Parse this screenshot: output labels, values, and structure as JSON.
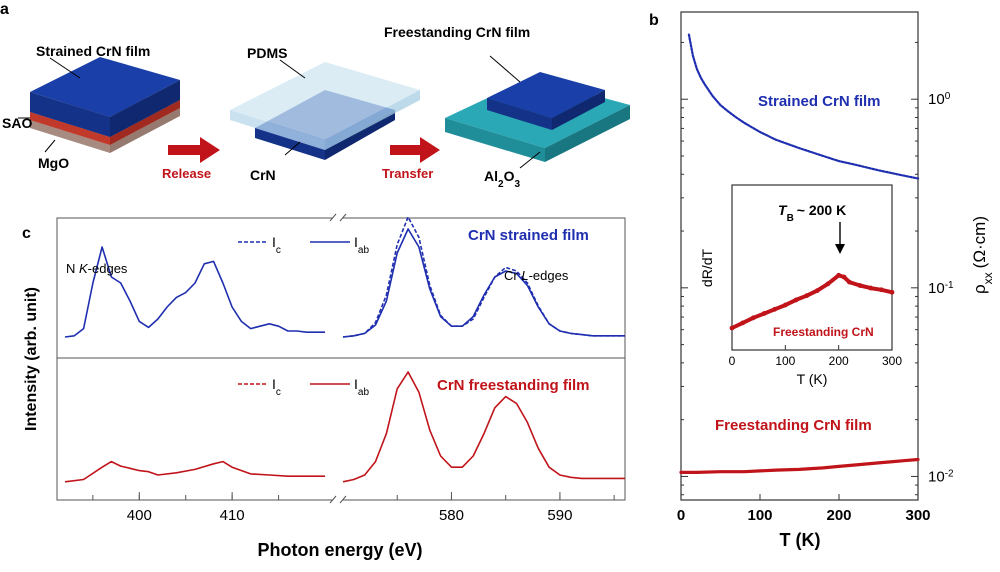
{
  "panel_a": {
    "letter": "a",
    "label_strained": "Strained CrN film",
    "label_sao": "SAO",
    "label_mgo": "MgO",
    "label_pdms": "PDMS",
    "label_crn": "CrN",
    "label_freestanding": "Freestanding CrN film",
    "label_al2o3_main": "Al",
    "label_al2o3_sub1": "2",
    "label_al2o3_o": "O",
    "label_al2o3_sub2": "3",
    "arrow_release": "Release",
    "arrow_transfer": "Transfer",
    "colors": {
      "crn": "#1a3fa8",
      "sao": "#c0392b",
      "mgo": "#b89a8f",
      "pdms": "#cfe6f2",
      "al2o3": "#2aa8b5",
      "arrow": "#c0141a"
    }
  },
  "chart_data": [
    {
      "panel": "b",
      "type": "line",
      "xlabel": "T (K)",
      "ylabel": "ρ",
      "ylabel_sub": "xx",
      "ylabel_unit": "(Ω·cm)",
      "xlim": [
        0,
        300
      ],
      "ylim": [
        0.0075,
        2.9
      ],
      "yscale": "log",
      "xticks": [
        0,
        100,
        200,
        300
      ],
      "yticks": [
        {
          "value": 1,
          "mantissa": "10",
          "exp": "0"
        },
        {
          "value": 0.1,
          "mantissa": "10",
          "exp": "-1"
        },
        {
          "value": 0.01,
          "mantissa": "10",
          "exp": "-2"
        }
      ],
      "series": [
        {
          "name": "Strained CrN film",
          "color": "#1f2fb0",
          "x": [
            10,
            15,
            20,
            25,
            30,
            40,
            50,
            60,
            70,
            80,
            100,
            120,
            150,
            180,
            200,
            220,
            250,
            280,
            300
          ],
          "y": [
            2.2,
            1.7,
            1.45,
            1.3,
            1.2,
            1.04,
            0.93,
            0.86,
            0.8,
            0.75,
            0.67,
            0.61,
            0.55,
            0.5,
            0.47,
            0.45,
            0.42,
            0.395,
            0.38
          ]
        },
        {
          "name": "Freestanding CrN film",
          "color": "#c0141a",
          "x": [
            0,
            20,
            50,
            80,
            100,
            120,
            150,
            180,
            200,
            220,
            250,
            280,
            300
          ],
          "y": [
            0.0105,
            0.0105,
            0.0106,
            0.0106,
            0.0107,
            0.0108,
            0.0109,
            0.0111,
            0.0113,
            0.0115,
            0.0118,
            0.0121,
            0.0123
          ]
        }
      ]
    },
    {
      "panel": "b-inset",
      "type": "line",
      "xlabel": "T (K)",
      "ylabel": "dR/dT",
      "xlim": [
        0,
        300
      ],
      "xticks": [
        0,
        100,
        200,
        300
      ],
      "annotation_main": "T",
      "annotation_sub": "B",
      "annotation_rest": "~ 200 K",
      "legend": "Freestanding CrN",
      "series": [
        {
          "name": "Freestanding CrN",
          "color": "#c0141a",
          "x": [
            0,
            20,
            40,
            60,
            80,
            100,
            120,
            140,
            160,
            180,
            200,
            210,
            220,
            240,
            260,
            280,
            300
          ],
          "y": [
            0.0,
            0.06,
            0.12,
            0.17,
            0.22,
            0.27,
            0.33,
            0.38,
            0.44,
            0.52,
            0.62,
            0.6,
            0.54,
            0.5,
            0.47,
            0.45,
            0.42
          ]
        }
      ]
    },
    {
      "panel": "c",
      "type": "line",
      "xlabel": "Photon energy (eV)",
      "ylabel": "Intensity (arb. unit)",
      "xticks_left": [
        400,
        410
      ],
      "xticks_right": [
        580,
        590
      ],
      "label_top": "CrN strained film",
      "label_bottom": "CrN freestanding film",
      "edge_n_pre": "N ",
      "edge_n_italic": "K",
      "edge_n_post": "-edges",
      "edge_cr_pre": "Cr ",
      "edge_cr_italic": "L",
      "edge_cr_post": "-edges",
      "legend_ic_main": "I",
      "legend_ic_sub": "c",
      "legend_iab_main": "I",
      "legend_iab_sub": "ab",
      "series": [
        {
          "name": "Strained Iab N K",
          "color": "#1f2fb0",
          "x": [
            392,
            393,
            394,
            395,
            396,
            397,
            398,
            399,
            400,
            401,
            402,
            403,
            404,
            405,
            406,
            407,
            408,
            409,
            410,
            411,
            412,
            413,
            414,
            415,
            416,
            417,
            418,
            419,
            420
          ],
          "y": [
            0.05,
            0.06,
            0.12,
            0.5,
            0.8,
            0.55,
            0.5,
            0.35,
            0.18,
            0.13,
            0.2,
            0.3,
            0.38,
            0.42,
            0.5,
            0.66,
            0.68,
            0.5,
            0.3,
            0.18,
            0.12,
            0.14,
            0.16,
            0.14,
            0.1,
            0.1,
            0.09,
            0.09,
            0.09
          ]
        },
        {
          "name": "Strained Iab Cr L",
          "color": "#1f2fb0",
          "x": [
            570,
            571,
            572,
            573,
            574,
            575,
            576,
            577,
            578,
            579,
            580,
            581,
            582,
            583,
            584,
            585,
            586,
            587,
            588,
            589,
            590,
            591,
            592,
            593,
            594,
            595,
            596
          ],
          "y": [
            0.05,
            0.06,
            0.08,
            0.15,
            0.35,
            0.75,
            0.95,
            0.8,
            0.45,
            0.22,
            0.14,
            0.14,
            0.22,
            0.4,
            0.55,
            0.6,
            0.58,
            0.48,
            0.3,
            0.16,
            0.1,
            0.08,
            0.07,
            0.06,
            0.06,
            0.06,
            0.06
          ]
        },
        {
          "name": "Strained Ic Cr L",
          "color": "#1f2fb0",
          "x": [
            570,
            571,
            572,
            573,
            574,
            575,
            576,
            577,
            578,
            579,
            580,
            581,
            582,
            583,
            584,
            585,
            586,
            587,
            588,
            589,
            590,
            591,
            592,
            593,
            594,
            595,
            596
          ],
          "y": [
            0.05,
            0.06,
            0.08,
            0.17,
            0.4,
            0.82,
            1.05,
            0.88,
            0.48,
            0.23,
            0.14,
            0.14,
            0.2,
            0.38,
            0.55,
            0.63,
            0.6,
            0.5,
            0.31,
            0.16,
            0.1,
            0.08,
            0.07,
            0.06,
            0.06,
            0.06,
            0.06
          ]
        },
        {
          "name": "Freestanding Iab N K",
          "color": "#c0141a",
          "x": [
            392,
            394,
            396,
            397,
            398,
            399,
            400,
            401,
            402,
            404,
            406,
            408,
            409,
            410,
            412,
            414,
            416,
            418,
            420
          ],
          "y": [
            0.02,
            0.04,
            0.15,
            0.2,
            0.16,
            0.14,
            0.12,
            0.11,
            0.08,
            0.1,
            0.13,
            0.18,
            0.2,
            0.15,
            0.09,
            0.08,
            0.07,
            0.07,
            0.07
          ]
        },
        {
          "name": "Freestanding Iab Cr L",
          "color": "#c0141a",
          "x": [
            570,
            571,
            572,
            573,
            574,
            575,
            576,
            577,
            578,
            579,
            580,
            581,
            582,
            583,
            584,
            585,
            586,
            587,
            588,
            589,
            590,
            591,
            592,
            593,
            594,
            595,
            596
          ],
          "y": [
            0.02,
            0.04,
            0.08,
            0.2,
            0.45,
            0.85,
            1.0,
            0.82,
            0.48,
            0.25,
            0.15,
            0.15,
            0.25,
            0.45,
            0.68,
            0.78,
            0.72,
            0.55,
            0.32,
            0.15,
            0.08,
            0.06,
            0.05,
            0.05,
            0.05,
            0.05,
            0.05
          ]
        }
      ]
    }
  ],
  "labels": {
    "b_letter": "b",
    "c_letter": "c",
    "b_series_strained": "Strained CrN film",
    "b_series_freestanding": "Freestanding CrN film"
  }
}
